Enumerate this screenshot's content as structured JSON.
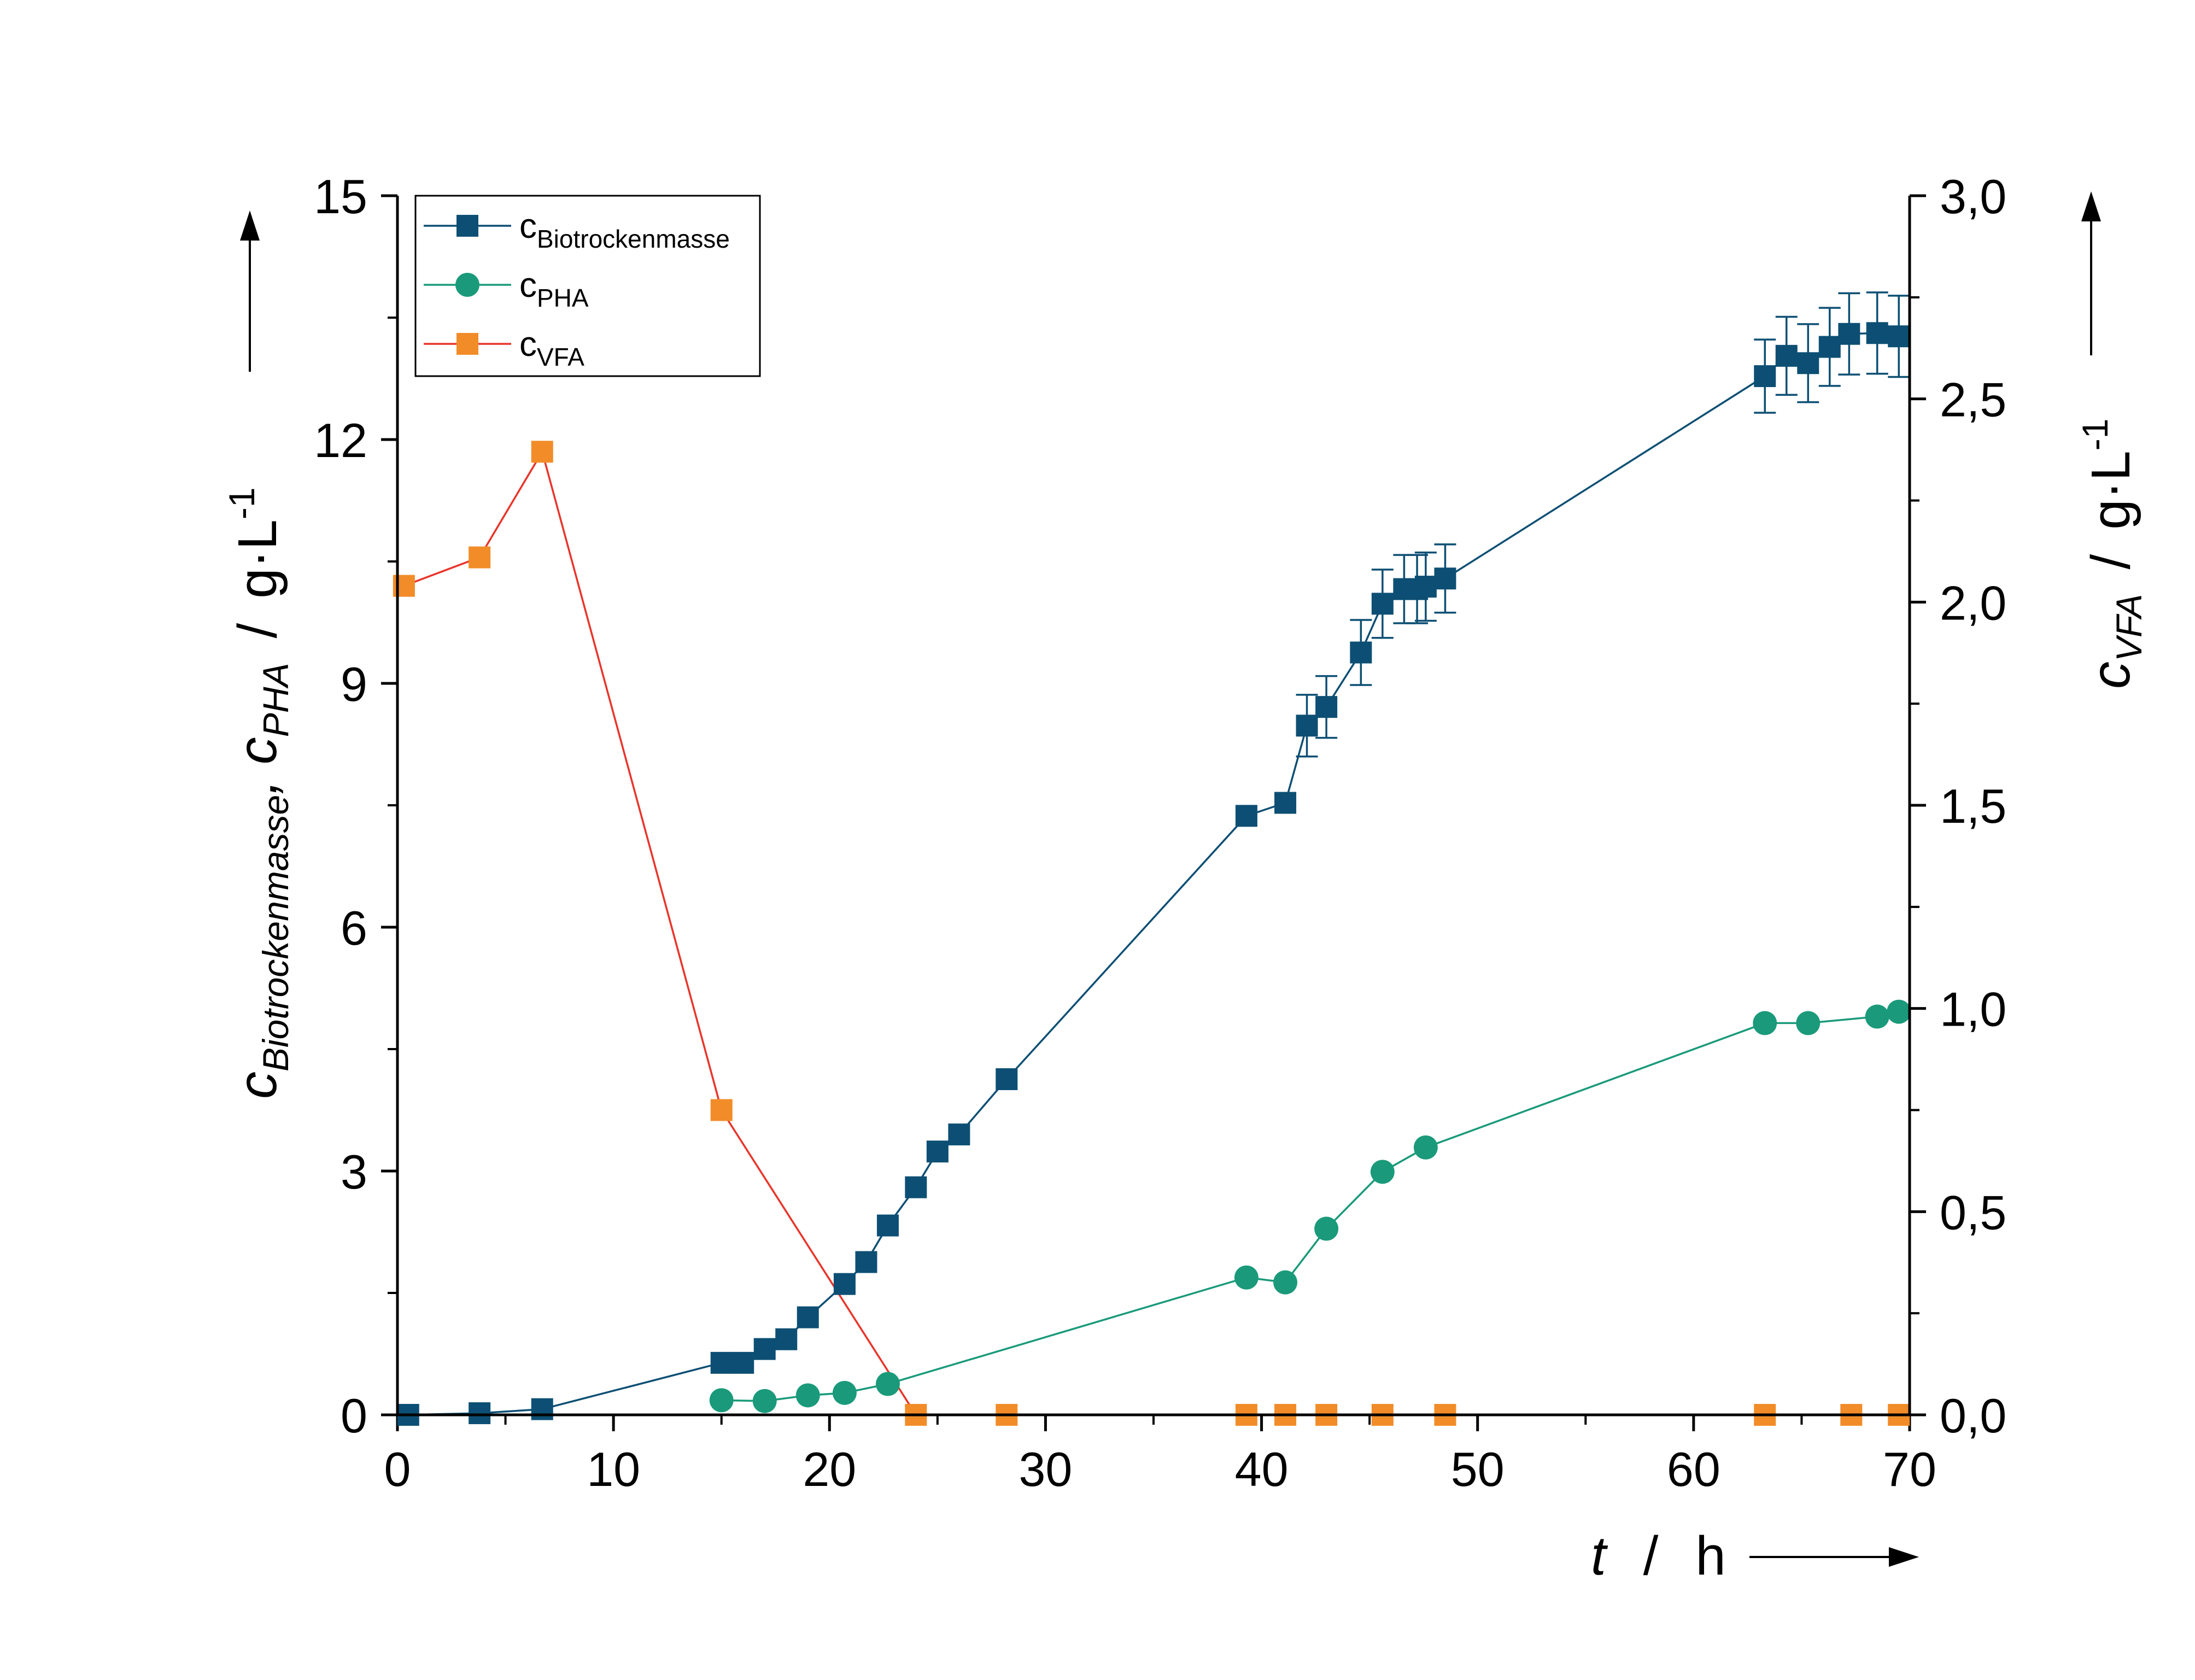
{
  "chart_data": {
    "type": "line",
    "x_axis": {
      "label_var": "t",
      "label_sep": "/",
      "label_unit": "h",
      "range": [
        0,
        70
      ],
      "ticks": [
        0,
        10,
        20,
        30,
        40,
        50,
        60,
        70
      ],
      "tick_labels": [
        "0",
        "10",
        "20",
        "30",
        "40",
        "50",
        "60",
        "70"
      ]
    },
    "y_left": {
      "label_c1": "c",
      "label_sub1": "Biotrockenmasse",
      "label_comma": ", ",
      "label_c2": "c",
      "label_sub2": "PHA",
      "label_sep": "/",
      "label_unit_base": "g·L",
      "label_unit_exp": "-1",
      "range": [
        0,
        15
      ],
      "ticks": [
        0,
        3,
        6,
        9,
        12,
        15
      ],
      "tick_labels": [
        "0",
        "3",
        "6",
        "9",
        "12",
        "15"
      ]
    },
    "y_right": {
      "label_c": "c",
      "label_sub": "VFA",
      "label_sep": "/",
      "label_unit_base": "g·L",
      "label_unit_exp": "-1",
      "range": [
        0,
        3.0
      ],
      "ticks": [
        0,
        0.5,
        1.0,
        1.5,
        2.0,
        2.5,
        3.0
      ],
      "tick_labels": [
        "0,0",
        "0,5",
        "1,0",
        "1,5",
        "2,0",
        "2,5",
        "3,0"
      ]
    },
    "legend_position": "top-left",
    "series": [
      {
        "name_base": "c",
        "name_sub": "Biotrockenmasse",
        "axis": "left",
        "marker": "square",
        "color": "#0d4f74",
        "x": [
          0.5,
          3.8,
          6.7,
          15.0,
          16.0,
          17.0,
          18.0,
          19.0,
          20.7,
          21.7,
          22.7,
          24.0,
          25.0,
          26.0,
          28.2,
          39.3,
          41.1,
          42.1,
          43.0,
          44.6,
          45.6,
          46.6,
          47.2,
          47.6,
          48.5,
          63.3,
          64.3,
          65.3,
          66.3,
          67.2,
          68.5,
          69.5
        ],
        "y": [
          0.0,
          0.02,
          0.07,
          0.64,
          0.64,
          0.81,
          0.93,
          1.2,
          1.61,
          1.88,
          2.33,
          2.8,
          3.24,
          3.45,
          4.13,
          7.37,
          7.53,
          8.48,
          8.71,
          9.38,
          9.98,
          10.16,
          10.16,
          10.19,
          10.29,
          12.78,
          13.03,
          12.94,
          13.14,
          13.3,
          13.31,
          13.27
        ],
        "error": [
          0,
          0,
          0,
          0,
          0,
          0,
          0,
          0,
          0,
          0,
          0,
          0,
          0,
          0,
          0,
          0,
          0,
          0.38,
          0.38,
          0.4,
          0.42,
          0.42,
          0.42,
          0.42,
          0.42,
          0.45,
          0.48,
          0.48,
          0.48,
          0.5,
          0.5,
          0.5
        ]
      },
      {
        "name_base": "c",
        "name_sub": "PHA",
        "axis": "left",
        "marker": "circle",
        "color": "#1a9a7a",
        "x": [
          15.0,
          17.0,
          19.0,
          20.7,
          22.7,
          39.3,
          41.1,
          43.0,
          45.6,
          47.6,
          63.3,
          65.3,
          68.5,
          69.5
        ],
        "y": [
          0.18,
          0.17,
          0.24,
          0.27,
          0.38,
          1.69,
          1.63,
          2.29,
          2.99,
          3.29,
          4.82,
          4.82,
          4.9,
          4.96
        ]
      },
      {
        "name_base": "c",
        "name_sub": "VFA",
        "axis": "right",
        "marker": "square",
        "color": "#f28c28",
        "line_color": "#e8352b",
        "x": [
          0.3,
          3.8,
          6.7,
          15.0,
          24.0,
          28.2,
          39.3,
          41.1,
          43.0,
          45.6,
          48.5,
          63.3,
          67.3,
          69.5
        ],
        "y": [
          2.04,
          2.11,
          2.37,
          0.75,
          0.0,
          0.0,
          0.0,
          0.0,
          0.0,
          0.0,
          0.0,
          0.0,
          0.0,
          0.0
        ]
      }
    ]
  }
}
